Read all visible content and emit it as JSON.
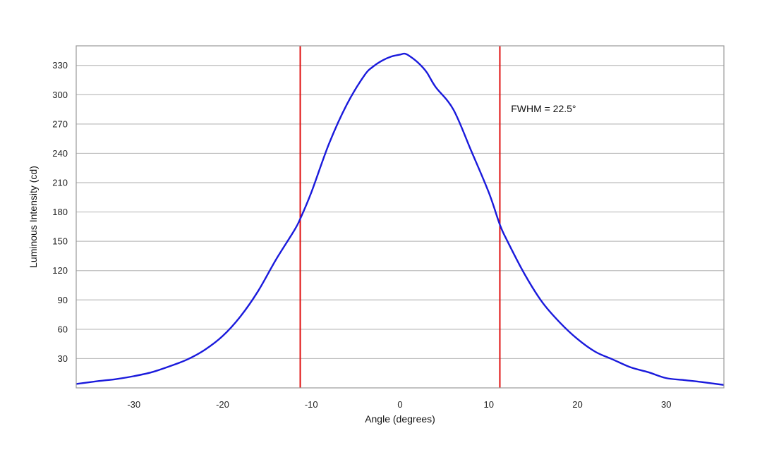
{
  "chart_data": {
    "type": "line",
    "title": "",
    "xlabel": "Angle (degrees)",
    "ylabel": "Luminous Intensity (cd)",
    "xlim": [
      -36.5,
      36.5
    ],
    "ylim": [
      0,
      350
    ],
    "grid": {
      "y": true,
      "x": false
    },
    "xticks": [
      -30,
      -20,
      -10,
      0,
      10,
      20,
      30
    ],
    "yticks": [
      30,
      60,
      90,
      120,
      150,
      180,
      210,
      240,
      270,
      300,
      330
    ],
    "colors": {
      "curve": "#1a1adc",
      "markers": "#e01010",
      "grid": "#bdbdbd",
      "frame": "#9a9a9a"
    },
    "series": [
      {
        "x": [
          -36.5,
          -34,
          -32,
          -30,
          -28,
          -26,
          -24,
          -22,
          -20,
          -18,
          -16,
          -14,
          -12,
          -11.25,
          -10,
          -8,
          -6,
          -4,
          -3,
          -2,
          -1,
          0,
          0.5,
          1,
          2,
          3,
          4,
          6,
          8,
          10,
          11.25,
          12,
          14,
          16,
          18,
          20,
          22,
          24,
          26,
          28,
          30,
          32,
          34,
          36.5
        ],
        "y": [
          4,
          7,
          9,
          12,
          16,
          22,
          29,
          39,
          53,
          73,
          99,
          131,
          160,
          173,
          200,
          250,
          290,
          320,
          329,
          335,
          339,
          341,
          342,
          340,
          333,
          323,
          308,
          285,
          243,
          200,
          167,
          152,
          117,
          88,
          67,
          50,
          37,
          29,
          21,
          16,
          10,
          8,
          6,
          3
        ]
      }
    ],
    "vlines": [
      -11.25,
      11.25
    ],
    "annotation": {
      "text": "FWHM = 22.5°",
      "x": 12.5,
      "y": 282
    }
  }
}
